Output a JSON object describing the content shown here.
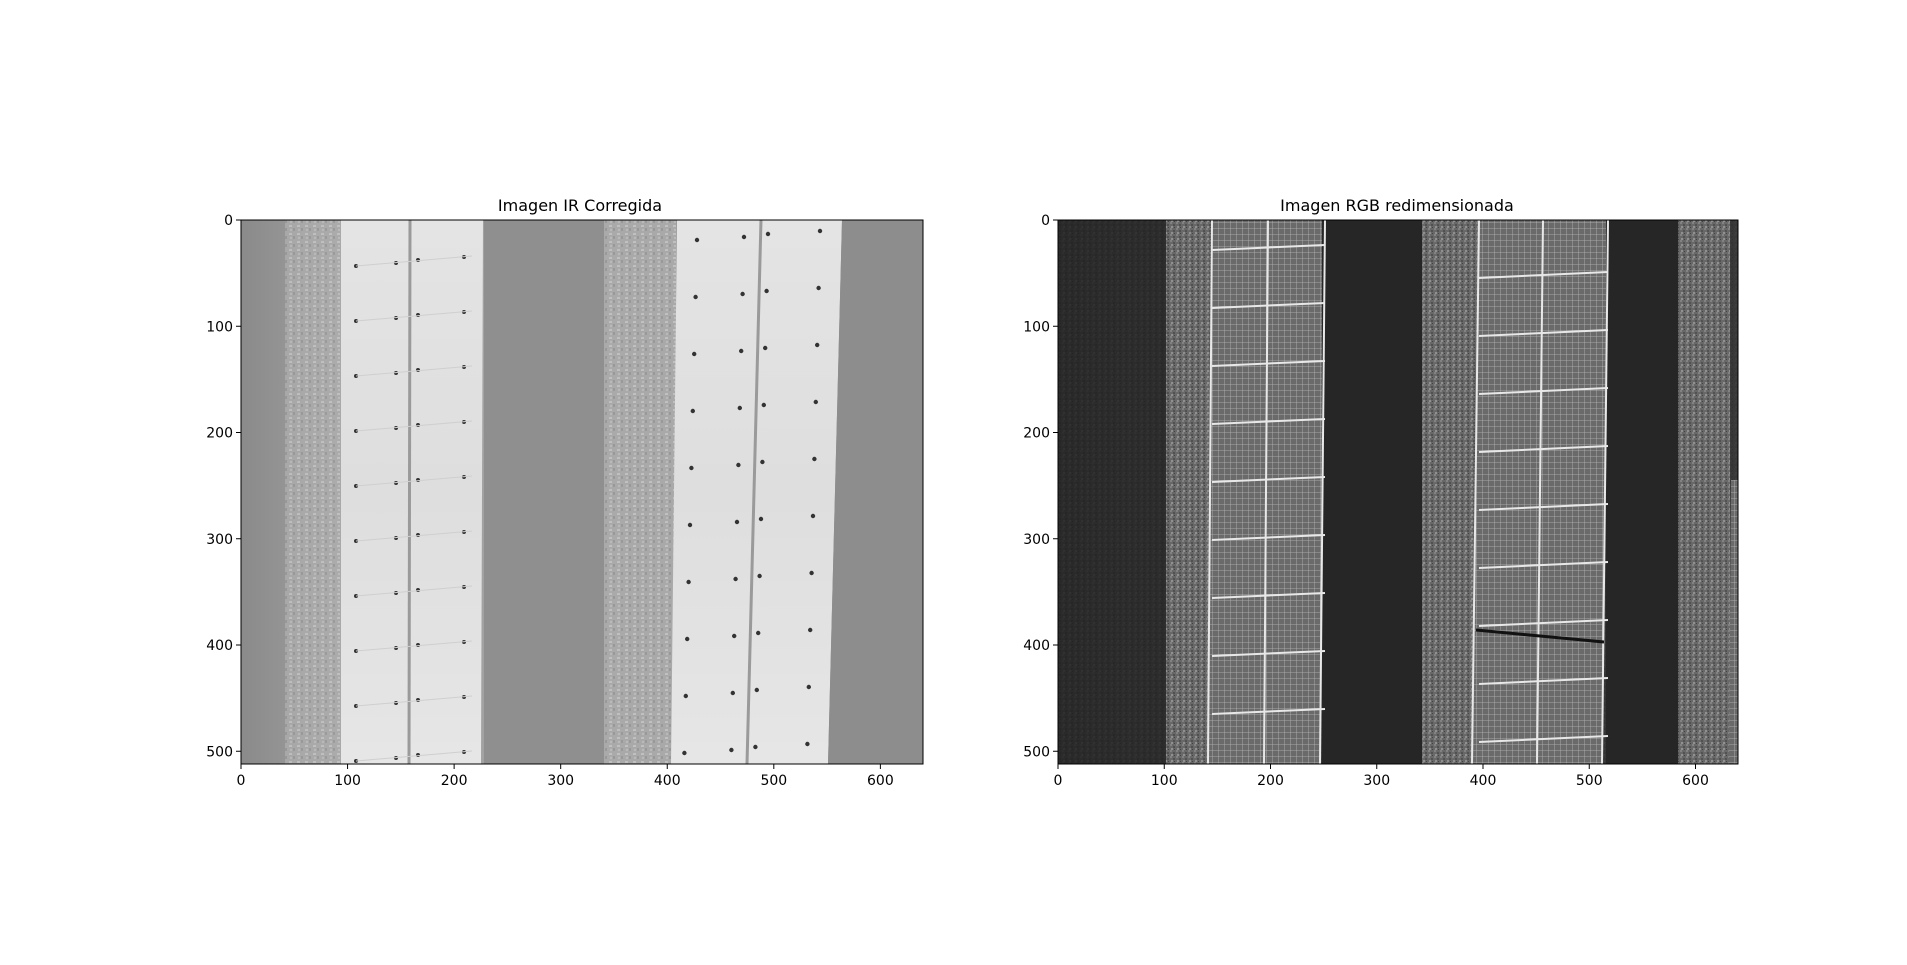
{
  "figure": {
    "panels": [
      {
        "title": "Imagen IR Corregida",
        "kind": "ir",
        "x_ticks": [
          "0",
          "100",
          "200",
          "300",
          "400",
          "500",
          "600"
        ],
        "y_ticks": [
          "0",
          "100",
          "200",
          "300",
          "400",
          "500"
        ],
        "x_range": [
          0,
          640
        ],
        "y_range": [
          0,
          512
        ]
      },
      {
        "title": "Imagen RGB redimensionada",
        "kind": "rgb",
        "x_ticks": [
          "0",
          "100",
          "200",
          "300",
          "400",
          "500",
          "600"
        ],
        "y_ticks": [
          "0",
          "100",
          "200",
          "300",
          "400",
          "500"
        ],
        "x_range": [
          0,
          640
        ],
        "y_range": [
          0,
          512
        ]
      }
    ]
  }
}
